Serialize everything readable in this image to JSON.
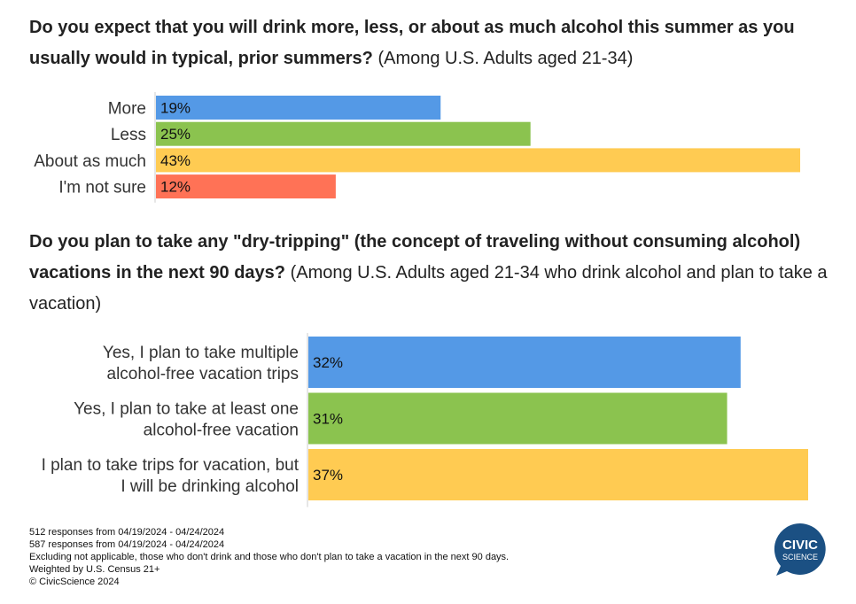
{
  "chart_data": [
    {
      "type": "bar",
      "orientation": "horizontal",
      "title_bold": "Do you expect that you will drink more, less, or about as much alcohol this summer as you usually would in typical, prior summers?",
      "title_sub": "(Among U.S. Adults aged 21-34)",
      "categories": [
        "More",
        "Less",
        "About as much",
        "I'm not sure"
      ],
      "values": [
        19,
        25,
        43,
        12
      ],
      "value_labels": [
        "19%",
        "25%",
        "43%",
        "12%"
      ],
      "colors": [
        "#5499E6",
        "#8BC34F",
        "#FFCB52",
        "#FF7256"
      ],
      "xlim": [
        0,
        43
      ]
    },
    {
      "type": "bar",
      "orientation": "horizontal",
      "title_bold": "Do you plan to take any \"dry-tripping\" (the concept of traveling without consuming alcohol) vacations in the next 90 days?",
      "title_sub": "(Among U.S. Adults aged 21-34 who drink alcohol and plan to take a vacation)",
      "categories": [
        [
          "Yes, I plan to take multiple",
          "alcohol-free vacation trips"
        ],
        [
          "Yes, I plan to take at least one",
          "alcohol-free vacation"
        ],
        [
          "I plan to take trips for vacation, but",
          "I will be drinking alcohol"
        ]
      ],
      "values": [
        32,
        31,
        37
      ],
      "value_labels": [
        "32%",
        "31%",
        "37%"
      ],
      "colors": [
        "#5499E6",
        "#8BC34F",
        "#FFCB52"
      ],
      "xlim": [
        0,
        37
      ]
    }
  ],
  "footer": [
    "512 responses from 04/19/2024 - 04/24/2024",
    "587 responses from 04/19/2024 - 04/24/2024",
    "Excluding not applicable, those who don't drink and those who don't plan to take a vacation in the next 90 days.",
    "Weighted by U.S. Census 21+",
    "© CivicScience 2024"
  ],
  "logo": {
    "line1": "CIVIC",
    "line2": "SCIENCE",
    "color": "#1B5083"
  }
}
